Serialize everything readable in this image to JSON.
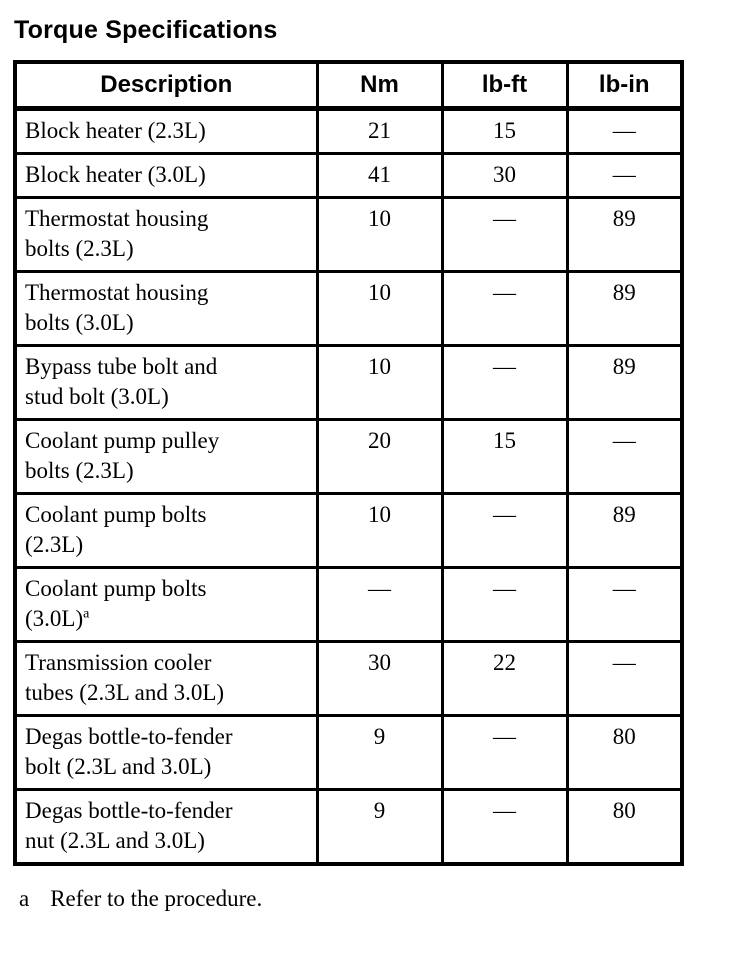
{
  "page": {
    "title": "Torque Specifications"
  },
  "table": {
    "columns": [
      "Description",
      "Nm",
      "lb-ft",
      "lb-in"
    ],
    "rows": [
      {
        "description_lines": [
          "Block heater (2.3L)"
        ],
        "nm": "21",
        "lb_ft": "15",
        "lb_in": "—"
      },
      {
        "description_lines": [
          "Block heater (3.0L)"
        ],
        "nm": "41",
        "lb_ft": "30",
        "lb_in": "—"
      },
      {
        "description_lines": [
          "Thermostat housing",
          "bolts (2.3L)"
        ],
        "nm": "10",
        "lb_ft": "—",
        "lb_in": "89"
      },
      {
        "description_lines": [
          "Thermostat housing",
          "bolts (3.0L)"
        ],
        "nm": "10",
        "lb_ft": "—",
        "lb_in": "89"
      },
      {
        "description_lines": [
          "Bypass tube bolt and",
          "stud bolt (3.0L)"
        ],
        "nm": "10",
        "lb_ft": "—",
        "lb_in": "89"
      },
      {
        "description_lines": [
          "Coolant pump pulley",
          "bolts (2.3L)"
        ],
        "nm": "20",
        "lb_ft": "15",
        "lb_in": "—"
      },
      {
        "description_lines": [
          "Coolant pump bolts",
          "(2.3L)"
        ],
        "nm": "10",
        "lb_ft": "—",
        "lb_in": "89"
      },
      {
        "description_lines": [
          "Coolant pump bolts",
          "(3.0L)"
        ],
        "footnote_marker": "a",
        "nm": "—",
        "lb_ft": "—",
        "lb_in": "—"
      },
      {
        "description_lines": [
          "Transmission cooler",
          "tubes (2.3L and 3.0L)"
        ],
        "nm": "30",
        "lb_ft": "22",
        "lb_in": "—"
      },
      {
        "description_lines": [
          "Degas bottle-to-fender",
          "bolt (2.3L and 3.0L)"
        ],
        "nm": "9",
        "lb_ft": "—",
        "lb_in": "80"
      },
      {
        "description_lines": [
          "Degas bottle-to-fender",
          "nut (2.3L and 3.0L)"
        ],
        "nm": "9",
        "lb_ft": "—",
        "lb_in": "80"
      }
    ]
  },
  "footnote": {
    "marker": "a",
    "text": "Refer to the procedure."
  },
  "colors": {
    "ink": "#000000",
    "paper": "#ffffff"
  }
}
